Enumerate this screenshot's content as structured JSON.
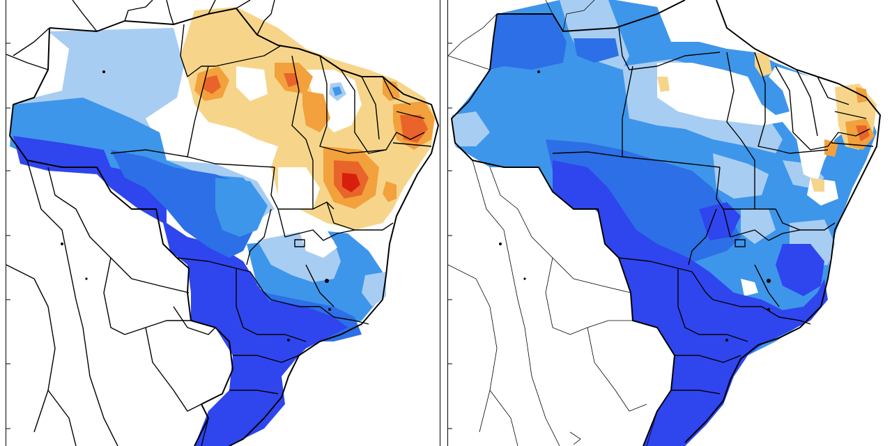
{
  "figure": {
    "panels": [
      {
        "id": "left",
        "description_visible_text": ""
      },
      {
        "id": "right",
        "description_visible_text": ""
      }
    ]
  },
  "colors": {
    "deep_blue": "#2f45ee",
    "blue": "#2c6fe6",
    "mid_blue": "#3d96ea",
    "light_blue": "#a8cdf2",
    "pale_orange": "#f6d58a",
    "orange": "#f2a13c",
    "dark_orange": "#e8642a",
    "red": "#d81f0d",
    "border": "#000000",
    "background": "#ffffff"
  }
}
